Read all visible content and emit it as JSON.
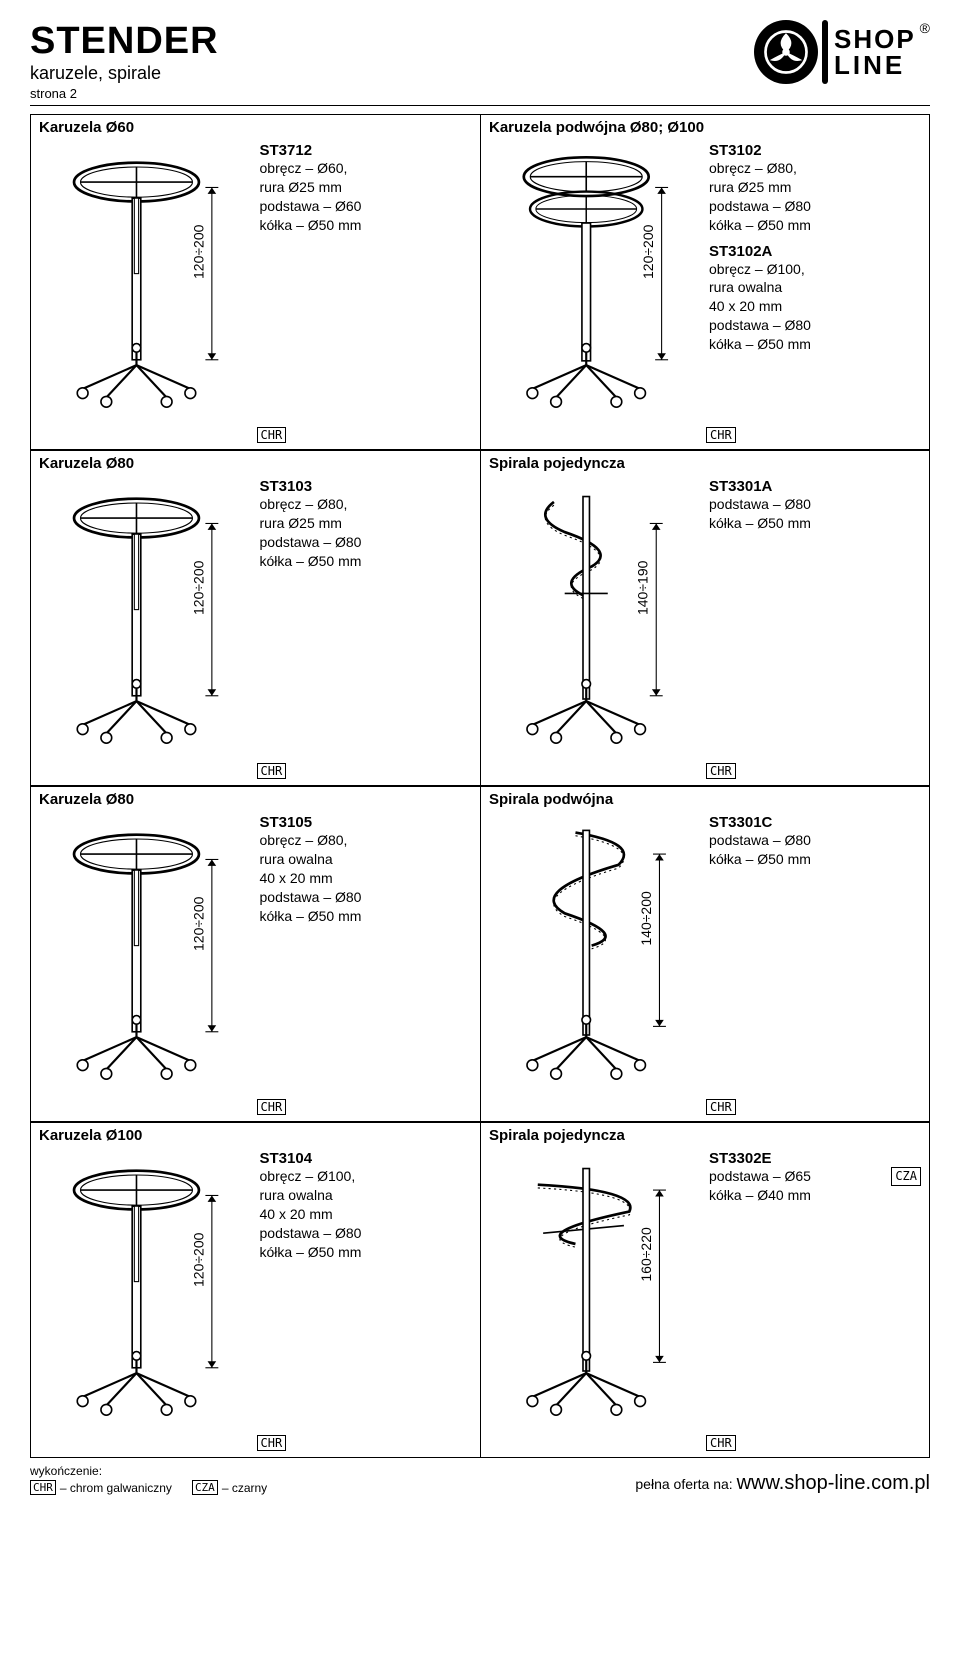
{
  "header": {
    "brand": "STENDER",
    "section": "karuzele, spirale",
    "page": "strona 2",
    "logo_shop": "SHOP",
    "logo_line": "LINE",
    "reg": "®"
  },
  "products": [
    {
      "title": "Karuzela Ø60",
      "sku": "ST3712",
      "specs": [
        "obręcz – Ø60,",
        "rura Ø25 mm",
        "podstawa – Ø60",
        "kółka – Ø50 mm"
      ],
      "dim": "120÷200",
      "badge": "CHR",
      "drawing": "carousel"
    },
    {
      "title": "Karuzela podwójna Ø80; Ø100",
      "sku": "ST3102",
      "specs": [
        "obręcz – Ø80,",
        "rura Ø25 mm",
        "podstawa – Ø80",
        "kółka – Ø50 mm"
      ],
      "sku2": "ST3102A",
      "specs2": [
        "obręcz – Ø100,",
        "rura owalna",
        "40 x 20 mm",
        "podstawa – Ø80",
        "kółka – Ø50 mm"
      ],
      "dim": "120÷200",
      "badge": "CHR",
      "drawing": "carousel_double"
    },
    {
      "title": "Karuzela Ø80",
      "sku": "ST3103",
      "specs": [
        "obręcz – Ø80,",
        "rura Ø25 mm",
        "podstawa – Ø80",
        "kółka – Ø50 mm"
      ],
      "dim": "120÷200",
      "badge": "CHR",
      "drawing": "carousel"
    },
    {
      "title": "Spirala pojedyncza",
      "sku": "ST3301A",
      "specs": [
        "podstawa – Ø80",
        "kółka – Ø50 mm"
      ],
      "dim": "140÷190",
      "badge": "CHR",
      "drawing": "spiral_single"
    },
    {
      "title": "Karuzela Ø80",
      "sku": "ST3105",
      "specs": [
        "obręcz – Ø80,",
        "rura owalna",
        "40 x 20 mm",
        "podstawa – Ø80",
        "kółka – Ø50 mm"
      ],
      "dim": "120÷200",
      "badge": "CHR",
      "drawing": "carousel"
    },
    {
      "title": "Spirala podwójna",
      "sku": "ST3301C",
      "specs": [
        "podstawa – Ø80",
        "kółka – Ø50 mm"
      ],
      "dim": "140÷200",
      "badge": "CHR",
      "drawing": "spiral_double"
    },
    {
      "title": "Karuzela Ø100",
      "sku": "ST3104",
      "specs": [
        "obręcz – Ø100,",
        "rura owalna",
        "40 x 20 mm",
        "podstawa – Ø80",
        "kółka – Ø50 mm"
      ],
      "dim": "120÷200",
      "badge": "CHR",
      "drawing": "carousel"
    },
    {
      "title": "Spirala pojedyncza",
      "sku": "ST3302E",
      "specs_inline": [
        {
          "text": "podstawa – Ø65",
          "badge": "CZA"
        }
      ],
      "specs": [
        "kółka – Ø40 mm"
      ],
      "dim": "160÷220",
      "badge": "CHR",
      "drawing": "spiral_single_wide"
    }
  ],
  "footer": {
    "finish_label": "wykończenie:",
    "legends": [
      {
        "code": "CHR",
        "label": "– chrom galwaniczny"
      },
      {
        "code": "CZA",
        "label": "– czarny"
      }
    ],
    "offer_prefix": "pełna oferta na: ",
    "url": "www.shop-line.com.pl"
  },
  "colors": {
    "text": "#000000",
    "bg": "#ffffff",
    "stroke": "#000000"
  }
}
